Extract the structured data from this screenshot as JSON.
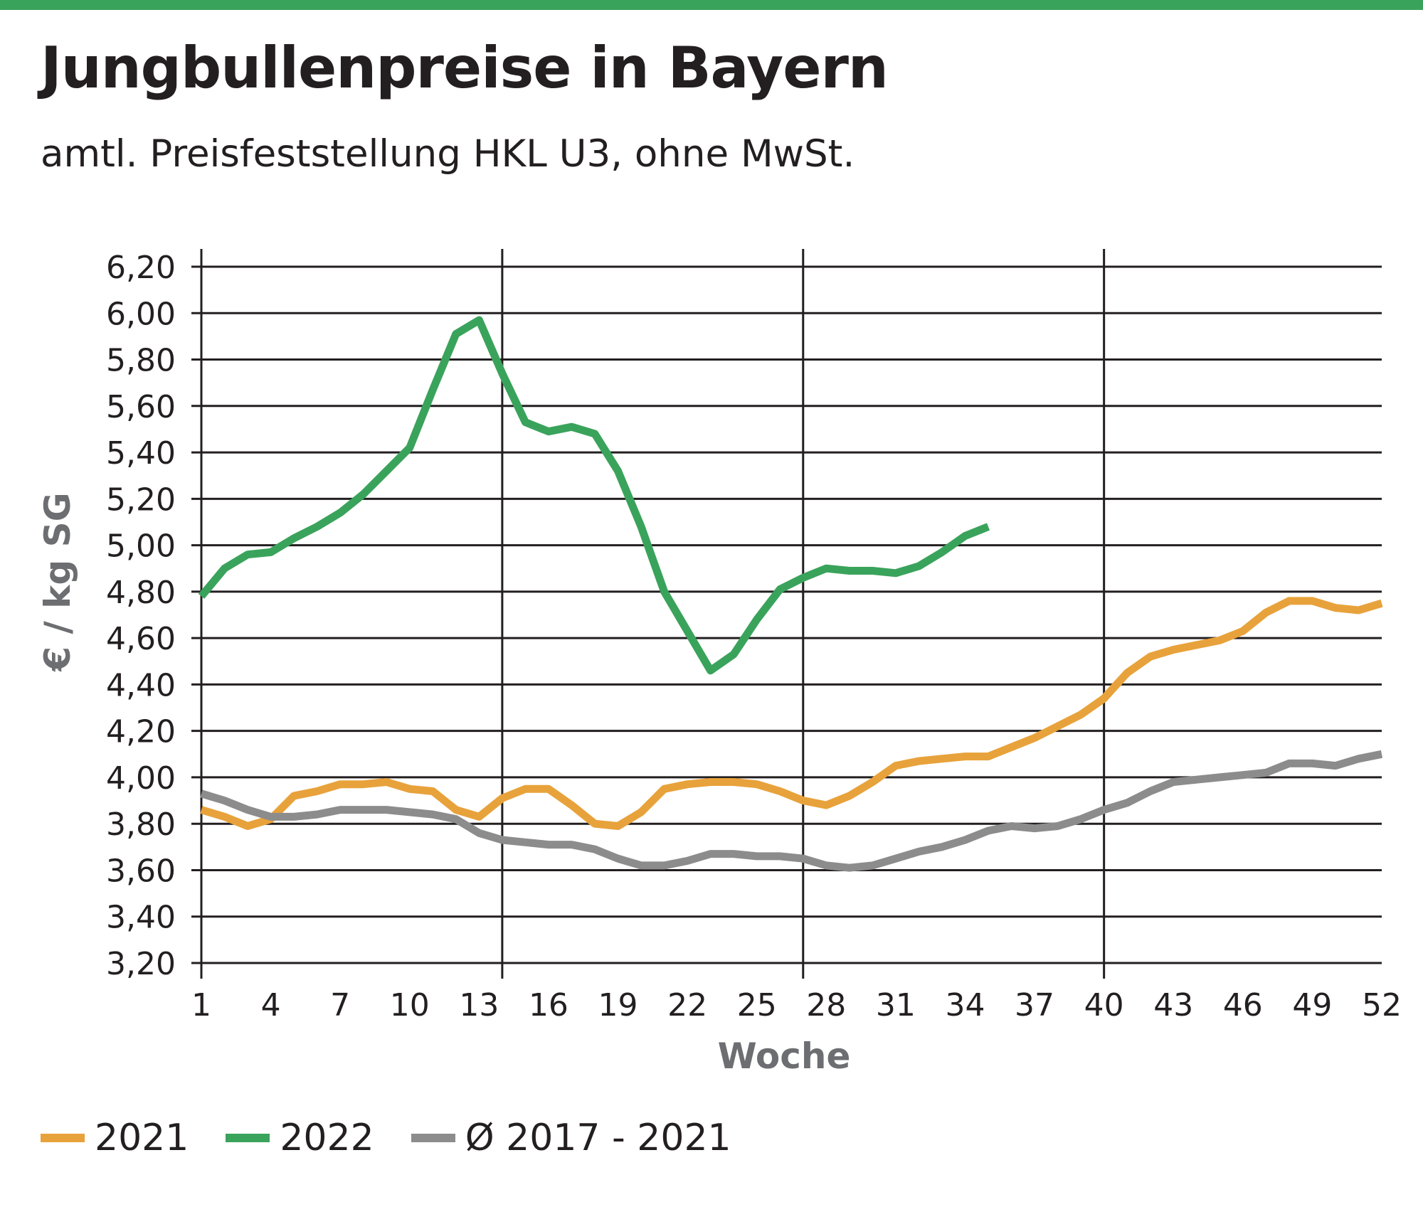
{
  "colors": {
    "brand_green": "#3aa35b",
    "series_2021": "#e8a23b",
    "series_2022": "#3aa35b",
    "series_avg": "#8c8c8c",
    "grid": "#231f20"
  },
  "header": {
    "title": "Jungbullenpreise in Bayern",
    "subtitle": "amtl. Preisfeststellung HKL U3, ohne MwSt."
  },
  "chart_data": {
    "type": "line",
    "xlabel": "Woche",
    "ylabel": "€ / kg SG",
    "xlim": [
      1,
      52
    ],
    "ylim": [
      3.2,
      6.2
    ],
    "y_ticks": [
      "6,20",
      "6,00",
      "5,80",
      "5,60",
      "5,40",
      "5,20",
      "5,00",
      "4,80",
      "4,60",
      "4,40",
      "4,20",
      "4,00",
      "3,80",
      "3,60",
      "3,40",
      "3,20"
    ],
    "x_ticks": [
      "1",
      "4",
      "7",
      "10",
      "13",
      "16",
      "19",
      "22",
      "25",
      "28",
      "31",
      "34",
      "37",
      "40",
      "43",
      "46",
      "49",
      "52"
    ],
    "grid": "horizontal lines at every y tick; vertical lines at weeks 1, 14, 27, 40",
    "legend_position": "bottom-left",
    "series": [
      {
        "name": "2021",
        "color": "#e8a23b",
        "x": [
          1,
          2,
          3,
          4,
          5,
          6,
          7,
          8,
          9,
          10,
          11,
          12,
          13,
          14,
          15,
          16,
          17,
          18,
          19,
          20,
          21,
          22,
          23,
          24,
          25,
          26,
          27,
          28,
          29,
          30,
          31,
          32,
          33,
          34,
          35,
          36,
          37,
          38,
          39,
          40,
          41,
          42,
          43,
          44,
          45,
          46,
          47,
          48,
          49,
          50,
          51,
          52
        ],
        "values": [
          3.86,
          3.83,
          3.79,
          3.82,
          3.92,
          3.94,
          3.97,
          3.97,
          3.98,
          3.95,
          3.94,
          3.86,
          3.83,
          3.91,
          3.95,
          3.95,
          3.88,
          3.8,
          3.79,
          3.85,
          3.95,
          3.97,
          3.98,
          3.98,
          3.97,
          3.94,
          3.9,
          3.88,
          3.92,
          3.98,
          4.05,
          4.07,
          4.08,
          4.09,
          4.09,
          4.13,
          4.17,
          4.22,
          4.27,
          4.34,
          4.45,
          4.52,
          4.55,
          4.57,
          4.59,
          4.63,
          4.71,
          4.76,
          4.76,
          4.73,
          4.72,
          4.75
        ]
      },
      {
        "name": "2022",
        "color": "#3aa35b",
        "x": [
          1,
          2,
          3,
          4,
          5,
          6,
          7,
          8,
          9,
          10,
          11,
          12,
          13,
          14,
          15,
          16,
          17,
          18,
          19,
          20,
          21,
          22,
          23,
          24,
          25,
          26,
          27,
          28,
          29,
          30,
          31,
          32,
          33,
          34,
          35
        ],
        "values": [
          4.78,
          4.9,
          4.96,
          4.97,
          5.03,
          5.08,
          5.14,
          5.22,
          5.32,
          5.42,
          5.67,
          5.91,
          5.97,
          5.74,
          5.53,
          5.49,
          5.51,
          5.48,
          5.32,
          5.08,
          4.8,
          4.63,
          4.46,
          4.53,
          4.68,
          4.81,
          4.86,
          4.9,
          4.89,
          4.89,
          4.88,
          4.91,
          4.97,
          5.04,
          5.08
        ]
      },
      {
        "name": "Ø 2017 - 2021",
        "color": "#8c8c8c",
        "x": [
          1,
          2,
          3,
          4,
          5,
          6,
          7,
          8,
          9,
          10,
          11,
          12,
          13,
          14,
          15,
          16,
          17,
          18,
          19,
          20,
          21,
          22,
          23,
          24,
          25,
          26,
          27,
          28,
          29,
          30,
          31,
          32,
          33,
          34,
          35,
          36,
          37,
          38,
          39,
          40,
          41,
          42,
          43,
          44,
          45,
          46,
          47,
          48,
          49,
          50,
          51,
          52
        ],
        "values": [
          3.93,
          3.9,
          3.86,
          3.83,
          3.83,
          3.84,
          3.86,
          3.86,
          3.86,
          3.85,
          3.84,
          3.82,
          3.76,
          3.73,
          3.72,
          3.71,
          3.71,
          3.69,
          3.65,
          3.62,
          3.62,
          3.64,
          3.67,
          3.67,
          3.66,
          3.66,
          3.65,
          3.62,
          3.61,
          3.62,
          3.65,
          3.68,
          3.7,
          3.73,
          3.77,
          3.79,
          3.78,
          3.79,
          3.82,
          3.86,
          3.89,
          3.94,
          3.98,
          3.99,
          4.0,
          4.01,
          4.02,
          4.06,
          4.06,
          4.05,
          4.08,
          4.1
        ]
      }
    ]
  },
  "legend": [
    {
      "label": "2021",
      "color": "#e8a23b"
    },
    {
      "label": "2022",
      "color": "#3aa35b"
    },
    {
      "label": "Ø 2017 - 2021",
      "color": "#8c8c8c"
    }
  ]
}
